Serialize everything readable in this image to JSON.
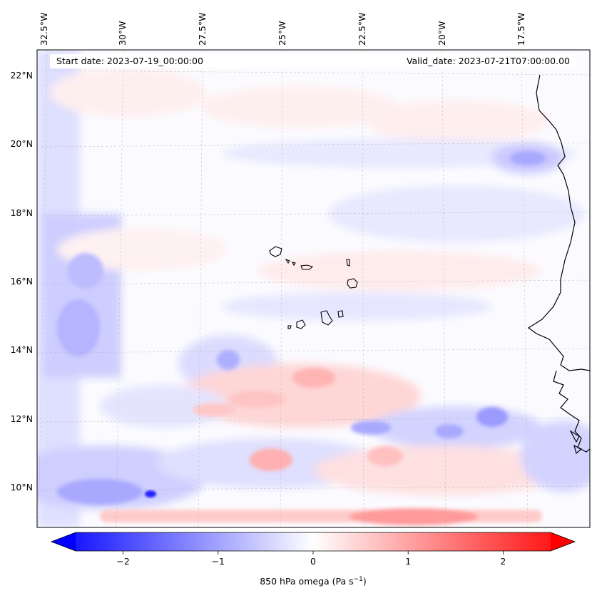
{
  "header": {
    "start_date": "Start date: 2023-07-19_00:00:00",
    "valid_date": "Valid_date: 2023-07-21T07:00:00.00"
  },
  "map": {
    "lon_ticks": [
      "32.5°W",
      "30°W",
      "27.5°W",
      "25°W",
      "22.5°W",
      "20°W",
      "17.5°W"
    ],
    "lat_ticks": [
      "22°N",
      "20°N",
      "18°N",
      "16°N",
      "14°N",
      "12°N",
      "10°N"
    ],
    "field": "850 hPa omega",
    "colors": {
      "negative": "#0000ff",
      "zero": "#ffffff",
      "positive": "#ff0000"
    },
    "coastline_color": "#000000",
    "gridlines": true
  },
  "colorbar": {
    "ticks": [
      "−2",
      "−1",
      "0",
      "1",
      "2"
    ],
    "tick_values": [
      -2,
      -1,
      0,
      1,
      2
    ],
    "range": [
      -2.5,
      2.5
    ],
    "label_main": "850 hPa omega (Pa s",
    "label_exp": "−1",
    "label_close": ")",
    "extend": "both",
    "cmap": "bwr"
  }
}
